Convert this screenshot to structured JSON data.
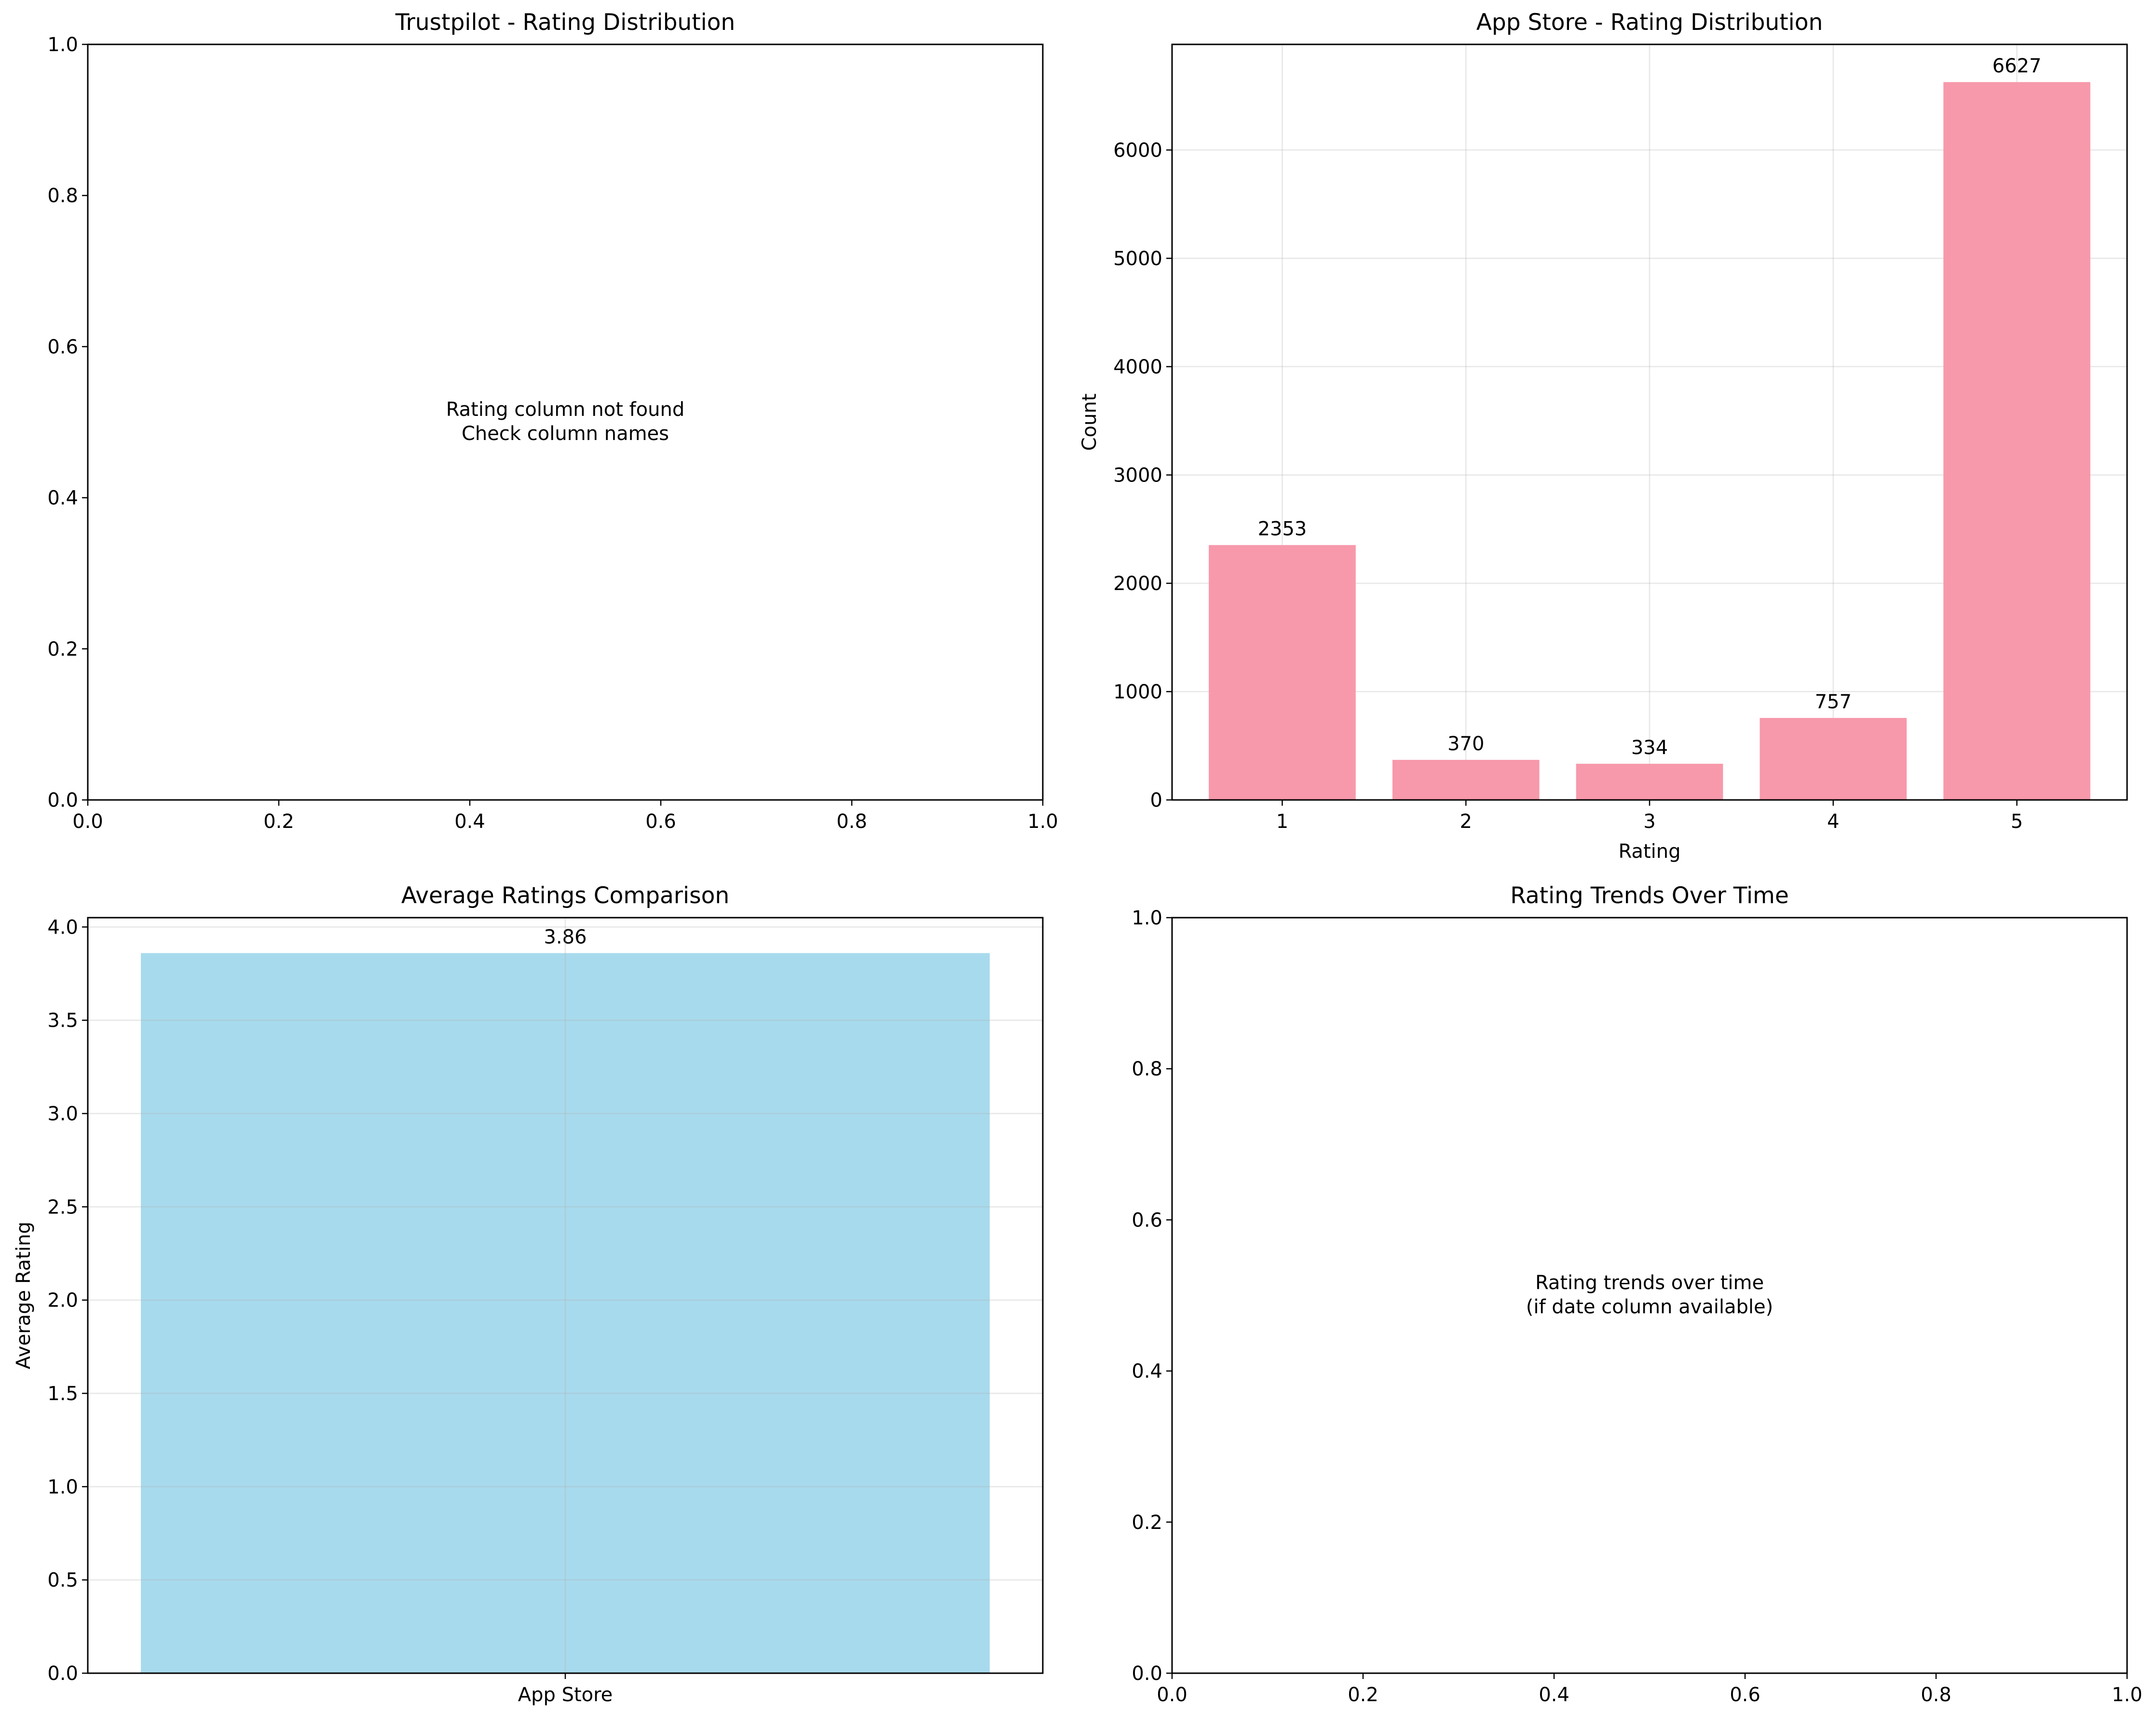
{
  "chart_data": [
    {
      "type": "bar",
      "title": "Trustpilot - Rating Distribution",
      "xlabel": "",
      "ylabel": "",
      "xlim": [
        0,
        1
      ],
      "ylim": [
        0,
        1
      ],
      "x_ticks": [
        "0.0",
        "0.2",
        "0.4",
        "0.6",
        "0.8",
        "1.0"
      ],
      "y_ticks": [
        "0.0",
        "0.2",
        "0.4",
        "0.6",
        "0.8",
        "1.0"
      ],
      "grid": false,
      "categories": [],
      "values": [],
      "message": [
        "Rating column not found",
        "Check column names"
      ]
    },
    {
      "type": "bar",
      "title": "App Store - Rating Distribution",
      "xlabel": "Rating",
      "ylabel": "Count",
      "categories": [
        "1",
        "2",
        "3",
        "4",
        "5"
      ],
      "values": [
        2353,
        370,
        334,
        757,
        6627
      ],
      "ylim": [
        0,
        6975
      ],
      "y_ticks": [
        "0",
        "1000",
        "2000",
        "3000",
        "4000",
        "5000",
        "6000"
      ],
      "grid": true,
      "color": "#f799ab"
    },
    {
      "type": "bar",
      "title": "Average Ratings Comparison",
      "xlabel": "",
      "ylabel": "Average Rating",
      "categories": [
        "App Store"
      ],
      "values": [
        3.86
      ],
      "value_labels": [
        "3.86"
      ],
      "ylim": [
        0,
        4.05
      ],
      "y_ticks": [
        "0.0",
        "0.5",
        "1.0",
        "1.5",
        "2.0",
        "2.5",
        "3.0",
        "3.5",
        "4.0"
      ],
      "grid": true,
      "color": "#a8daed"
    },
    {
      "type": "line",
      "title": "Rating Trends Over Time",
      "xlabel": "",
      "ylabel": "",
      "xlim": [
        0,
        1
      ],
      "ylim": [
        0,
        1
      ],
      "x_ticks": [
        "0.0",
        "0.2",
        "0.4",
        "0.6",
        "0.8",
        "1.0"
      ],
      "y_ticks": [
        "0.0",
        "0.2",
        "0.4",
        "0.6",
        "0.8",
        "1.0"
      ],
      "grid": false,
      "series": [],
      "message": [
        "Rating trends over time",
        "(if date column available)"
      ]
    }
  ]
}
